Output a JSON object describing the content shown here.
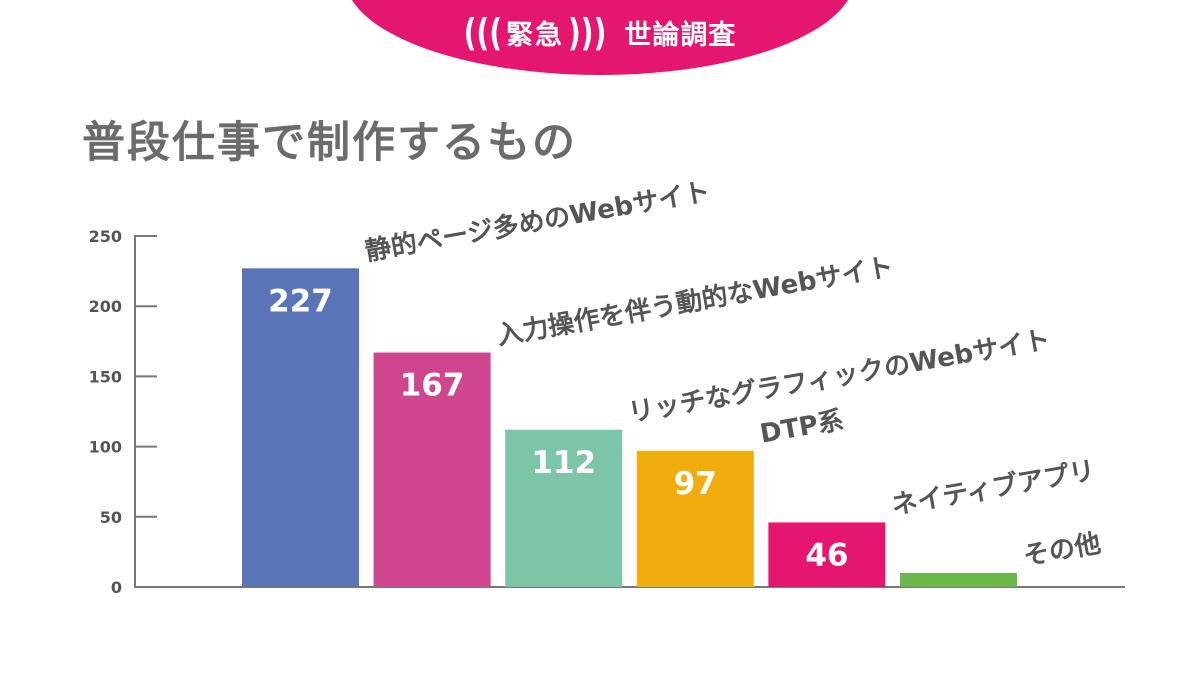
{
  "badge": {
    "left": "緊急",
    "right": "世論調査",
    "color": "#e5166f"
  },
  "title": "普段仕事で制作するもの",
  "chart_data": {
    "type": "bar",
    "title": "普段仕事で制作するもの",
    "xlabel": "",
    "ylabel": "",
    "ylim": [
      0,
      250
    ],
    "yticks": [
      "0",
      "50",
      "100",
      "150",
      "200",
      "250"
    ],
    "grid": false,
    "legend": "none",
    "categories": [
      "静的ページ多めのWebサイト",
      "入力操作を伴う動的なWebサイト",
      "リッチなグラフィックのWebサイト",
      "DTP系",
      "ネイティブアプリ",
      "その他"
    ],
    "values": [
      227,
      167,
      112,
      97,
      46,
      10
    ],
    "data_labels": [
      "227",
      "167",
      "112",
      "97",
      "46",
      ""
    ],
    "colors": [
      "#5a74b8",
      "#d0468e",
      "#7cc5a6",
      "#f1ac0d",
      "#e5166f",
      "#6ab84a"
    ]
  }
}
